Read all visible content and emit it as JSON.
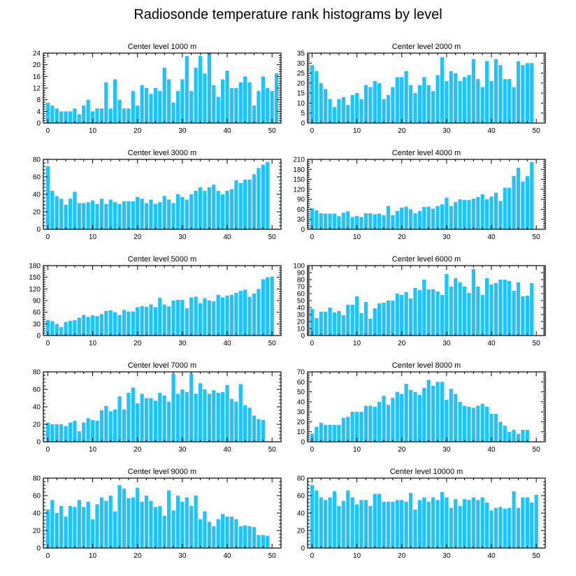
{
  "title": "Radiosonde temperature rank histograms by level",
  "style": {
    "bar_color": "#1EC3FF",
    "axis_color": "#000000",
    "background": "#ffffff"
  },
  "chart_data": [
    {
      "type": "bar",
      "title": "Center level 1000 m",
      "xlabel": "",
      "ylabel": "",
      "xlim": [
        -1,
        52
      ],
      "ylim": [
        0,
        24
      ],
      "xticks": [
        0,
        10,
        20,
        30,
        40,
        50
      ],
      "yticks": [
        0,
        4,
        8,
        12,
        16,
        20,
        24
      ],
      "x": [
        0,
        1,
        2,
        3,
        4,
        5,
        6,
        7,
        8,
        9,
        10,
        11,
        12,
        13,
        14,
        15,
        16,
        17,
        18,
        19,
        20,
        21,
        22,
        23,
        24,
        25,
        26,
        27,
        28,
        29,
        30,
        31,
        32,
        33,
        34,
        35,
        36,
        37,
        38,
        39,
        40,
        41,
        42,
        43,
        44,
        45,
        46,
        47,
        48,
        49,
        50,
        51
      ],
      "values": [
        7,
        6,
        5,
        4,
        4,
        4,
        5,
        3,
        6,
        8,
        4,
        5,
        5,
        14,
        5,
        15,
        8,
        5,
        5,
        11,
        6,
        13,
        12,
        10,
        12,
        11,
        19,
        15,
        7,
        11,
        15,
        23,
        11,
        19,
        23,
        17,
        24,
        13,
        9,
        15,
        18,
        12,
        12,
        14,
        16,
        14,
        6,
        11,
        16,
        12,
        11,
        17
      ]
    },
    {
      "type": "bar",
      "title": "Center level 2000 m",
      "xlabel": "",
      "ylabel": "",
      "xlim": [
        -1,
        52
      ],
      "ylim": [
        0,
        35
      ],
      "xticks": [
        0,
        10,
        20,
        30,
        40,
        50
      ],
      "yticks": [
        0,
        5,
        10,
        15,
        20,
        25,
        30,
        35
      ],
      "x": [
        0,
        1,
        2,
        3,
        4,
        5,
        6,
        7,
        8,
        9,
        10,
        11,
        12,
        13,
        14,
        15,
        16,
        17,
        18,
        19,
        20,
        21,
        22,
        23,
        24,
        25,
        26,
        27,
        28,
        29,
        30,
        31,
        32,
        33,
        34,
        35,
        36,
        37,
        38,
        39,
        40,
        41,
        42,
        43,
        44,
        45,
        46,
        47,
        48,
        49,
        50,
        51
      ],
      "values": [
        29,
        26,
        20,
        17,
        12,
        8,
        12,
        13,
        9,
        14,
        15,
        12,
        19,
        18,
        21,
        20,
        12,
        14,
        18,
        23,
        23,
        26,
        19,
        15,
        19,
        23,
        19,
        16,
        24,
        33,
        21,
        26,
        25,
        21,
        23,
        24,
        32,
        22,
        18,
        31,
        21,
        32,
        29,
        22,
        22,
        18,
        31,
        29,
        30,
        30,
        0,
        0
      ]
    },
    {
      "type": "bar",
      "title": "Center level 3000 m",
      "xlabel": "",
      "ylabel": "",
      "xlim": [
        -1,
        52
      ],
      "ylim": [
        0,
        80
      ],
      "xticks": [
        0,
        10,
        20,
        30,
        40,
        50
      ],
      "yticks": [
        0,
        20,
        40,
        60,
        80
      ],
      "x": [
        0,
        1,
        2,
        3,
        4,
        5,
        6,
        7,
        8,
        9,
        10,
        11,
        12,
        13,
        14,
        15,
        16,
        17,
        18,
        19,
        20,
        21,
        22,
        23,
        24,
        25,
        26,
        27,
        28,
        29,
        30,
        31,
        32,
        33,
        34,
        35,
        36,
        37,
        38,
        39,
        40,
        41,
        42,
        43,
        44,
        45,
        46,
        47,
        48,
        49,
        50,
        51
      ],
      "values": [
        72,
        44,
        38,
        35,
        28,
        35,
        43,
        30,
        30,
        31,
        33,
        29,
        35,
        29,
        34,
        31,
        29,
        32,
        32,
        32,
        37,
        35,
        30,
        34,
        29,
        31,
        38,
        34,
        30,
        40,
        37,
        34,
        40,
        44,
        48,
        44,
        48,
        51,
        44,
        40,
        44,
        46,
        56,
        53,
        57,
        57,
        63,
        70,
        74,
        77,
        0,
        0
      ]
    },
    {
      "type": "bar",
      "title": "Center level 4000 m",
      "xlabel": "",
      "ylabel": "",
      "xlim": [
        -1,
        52
      ],
      "ylim": [
        0,
        210
      ],
      "xticks": [
        0,
        10,
        20,
        30,
        40,
        50
      ],
      "yticks": [
        0,
        30,
        60,
        90,
        120,
        150,
        180,
        210
      ],
      "x": [
        0,
        1,
        2,
        3,
        4,
        5,
        6,
        7,
        8,
        9,
        10,
        11,
        12,
        13,
        14,
        15,
        16,
        17,
        18,
        19,
        20,
        21,
        22,
        23,
        24,
        25,
        26,
        27,
        28,
        29,
        30,
        31,
        32,
        33,
        34,
        35,
        36,
        37,
        38,
        39,
        40,
        41,
        42,
        43,
        44,
        45,
        46,
        47,
        48,
        49,
        50,
        51
      ],
      "values": [
        63,
        57,
        48,
        47,
        47,
        47,
        39,
        50,
        54,
        37,
        40,
        37,
        48,
        48,
        45,
        47,
        42,
        70,
        42,
        55,
        65,
        68,
        60,
        48,
        55,
        67,
        68,
        62,
        70,
        75,
        95,
        70,
        82,
        90,
        88,
        88,
        92,
        97,
        105,
        90,
        98,
        110,
        85,
        125,
        125,
        160,
        185,
        143,
        160,
        202,
        0,
        0
      ]
    },
    {
      "type": "bar",
      "title": "Center level 5000 m",
      "xlabel": "",
      "ylabel": "",
      "xlim": [
        -1,
        52
      ],
      "ylim": [
        0,
        180
      ],
      "xticks": [
        0,
        10,
        20,
        30,
        40,
        50
      ],
      "yticks": [
        0,
        30,
        60,
        90,
        120,
        150,
        180
      ],
      "x": [
        0,
        1,
        2,
        3,
        4,
        5,
        6,
        7,
        8,
        9,
        10,
        11,
        12,
        13,
        14,
        15,
        16,
        17,
        18,
        19,
        20,
        21,
        22,
        23,
        24,
        25,
        26,
        27,
        28,
        29,
        30,
        31,
        32,
        33,
        34,
        35,
        36,
        37,
        38,
        39,
        40,
        41,
        42,
        43,
        44,
        45,
        46,
        47,
        48,
        49,
        50,
        51
      ],
      "values": [
        40,
        37,
        30,
        22,
        35,
        38,
        40,
        46,
        53,
        48,
        52,
        50,
        55,
        63,
        65,
        60,
        53,
        66,
        62,
        62,
        73,
        76,
        74,
        80,
        73,
        97,
        80,
        75,
        90,
        92,
        92,
        70,
        98,
        100,
        83,
        96,
        90,
        88,
        105,
        98,
        103,
        105,
        110,
        115,
        118,
        100,
        108,
        120,
        145,
        150,
        152,
        0
      ]
    },
    {
      "type": "bar",
      "title": "Center level 6000 m",
      "xlabel": "",
      "ylabel": "",
      "xlim": [
        -1,
        52
      ],
      "ylim": [
        0,
        100
      ],
      "xticks": [
        0,
        10,
        20,
        30,
        40,
        50
      ],
      "yticks": [
        0,
        10,
        20,
        30,
        40,
        50,
        60,
        70,
        80,
        90,
        100
      ],
      "x": [
        0,
        1,
        2,
        3,
        4,
        5,
        6,
        7,
        8,
        9,
        10,
        11,
        12,
        13,
        14,
        15,
        16,
        17,
        18,
        19,
        20,
        21,
        22,
        23,
        24,
        25,
        26,
        27,
        28,
        29,
        30,
        31,
        32,
        33,
        34,
        35,
        36,
        37,
        38,
        39,
        40,
        41,
        42,
        43,
        44,
        45,
        46,
        47,
        48,
        49,
        50,
        51
      ],
      "values": [
        38,
        25,
        34,
        34,
        40,
        33,
        35,
        29,
        44,
        44,
        56,
        32,
        48,
        24,
        39,
        46,
        47,
        50,
        50,
        60,
        58,
        62,
        53,
        68,
        65,
        80,
        66,
        66,
        63,
        58,
        88,
        70,
        82,
        76,
        70,
        61,
        95,
        70,
        58,
        82,
        73,
        75,
        80,
        80,
        78,
        64,
        76,
        56,
        57,
        75,
        0,
        0
      ]
    },
    {
      "type": "bar",
      "title": "Center level 7000 m",
      "xlabel": "",
      "ylabel": "",
      "xlim": [
        -1,
        52
      ],
      "ylim": [
        0,
        80
      ],
      "xticks": [
        0,
        10,
        20,
        30,
        40,
        50
      ],
      "yticks": [
        0,
        20,
        40,
        60,
        80
      ],
      "x": [
        0,
        1,
        2,
        3,
        4,
        5,
        6,
        7,
        8,
        9,
        10,
        11,
        12,
        13,
        14,
        15,
        16,
        17,
        18,
        19,
        20,
        21,
        22,
        23,
        24,
        25,
        26,
        27,
        28,
        29,
        30,
        31,
        32,
        33,
        34,
        35,
        36,
        37,
        38,
        39,
        40,
        41,
        42,
        43,
        44,
        45,
        46,
        47,
        48,
        49,
        50,
        51
      ],
      "values": [
        22,
        20,
        20,
        20,
        18,
        22,
        24,
        12,
        22,
        27,
        25,
        24,
        36,
        41,
        35,
        37,
        52,
        37,
        56,
        62,
        44,
        55,
        50,
        50,
        47,
        56,
        53,
        46,
        78,
        55,
        60,
        57,
        78,
        55,
        67,
        60,
        55,
        59,
        56,
        57,
        65,
        49,
        46,
        66,
        42,
        39,
        30,
        26,
        25,
        0,
        0,
        0
      ]
    },
    {
      "type": "bar",
      "title": "Center level 8000 m",
      "xlabel": "",
      "ylabel": "",
      "xlim": [
        -1,
        52
      ],
      "ylim": [
        0,
        70
      ],
      "xticks": [
        0,
        10,
        20,
        30,
        40,
        50
      ],
      "yticks": [
        0,
        10,
        20,
        30,
        40,
        50,
        60,
        70
      ],
      "x": [
        0,
        1,
        2,
        3,
        4,
        5,
        6,
        7,
        8,
        9,
        10,
        11,
        12,
        13,
        14,
        15,
        16,
        17,
        18,
        19,
        20,
        21,
        22,
        23,
        24,
        25,
        26,
        27,
        28,
        29,
        30,
        31,
        32,
        33,
        34,
        35,
        36,
        37,
        38,
        39,
        40,
        41,
        42,
        43,
        44,
        45,
        46,
        47,
        48,
        49,
        50,
        51
      ],
      "values": [
        8,
        15,
        19,
        17,
        17,
        17,
        17,
        24,
        25,
        30,
        30,
        30,
        36,
        36,
        35,
        40,
        46,
        37,
        44,
        50,
        48,
        58,
        52,
        50,
        47,
        54,
        62,
        56,
        60,
        60,
        42,
        53,
        48,
        40,
        36,
        35,
        34,
        36,
        38,
        35,
        28,
        28,
        20,
        16,
        10,
        12,
        8,
        12,
        12,
        0,
        0,
        0
      ]
    },
    {
      "type": "bar",
      "title": "Center level 9000 m",
      "xlabel": "",
      "ylabel": "",
      "xlim": [
        -1,
        52
      ],
      "ylim": [
        0,
        80
      ],
      "xticks": [
        0,
        10,
        20,
        30,
        40,
        50
      ],
      "yticks": [
        0,
        20,
        40,
        60,
        80
      ],
      "x": [
        0,
        1,
        2,
        3,
        4,
        5,
        6,
        7,
        8,
        9,
        10,
        11,
        12,
        13,
        14,
        15,
        16,
        17,
        18,
        19,
        20,
        21,
        22,
        23,
        24,
        25,
        26,
        27,
        28,
        29,
        30,
        31,
        32,
        33,
        34,
        35,
        36,
        37,
        38,
        39,
        40,
        41,
        42,
        43,
        44,
        45,
        46,
        47,
        48,
        49,
        50,
        51
      ],
      "values": [
        44,
        55,
        40,
        48,
        36,
        48,
        47,
        55,
        47,
        53,
        33,
        50,
        58,
        54,
        60,
        42,
        72,
        68,
        57,
        58,
        69,
        53,
        60,
        54,
        47,
        48,
        37,
        66,
        43,
        60,
        53,
        58,
        48,
        60,
        33,
        42,
        30,
        25,
        33,
        39,
        36,
        36,
        33,
        25,
        26,
        25,
        24,
        15,
        15,
        14,
        0,
        0
      ]
    },
    {
      "type": "bar",
      "title": "Center level 10000 m",
      "xlabel": "",
      "ylabel": "",
      "xlim": [
        -1,
        52
      ],
      "ylim": [
        0,
        80
      ],
      "xticks": [
        0,
        10,
        20,
        30,
        40,
        50
      ],
      "yticks": [
        0,
        20,
        40,
        60,
        80
      ],
      "x": [
        0,
        1,
        2,
        3,
        4,
        5,
        6,
        7,
        8,
        9,
        10,
        11,
        12,
        13,
        14,
        15,
        16,
        17,
        18,
        19,
        20,
        21,
        22,
        23,
        24,
        25,
        26,
        27,
        28,
        29,
        30,
        31,
        32,
        33,
        34,
        35,
        36,
        37,
        38,
        39,
        40,
        41,
        42,
        43,
        44,
        45,
        46,
        47,
        48,
        49,
        50,
        51
      ],
      "values": [
        72,
        66,
        58,
        55,
        58,
        65,
        48,
        54,
        66,
        58,
        50,
        55,
        55,
        48,
        62,
        62,
        53,
        53,
        53,
        55,
        55,
        53,
        63,
        44,
        55,
        58,
        53,
        58,
        55,
        64,
        58,
        46,
        56,
        48,
        56,
        55,
        58,
        55,
        58,
        52,
        43,
        46,
        47,
        45,
        46,
        65,
        46,
        58,
        58,
        52,
        61,
        0
      ]
    }
  ]
}
